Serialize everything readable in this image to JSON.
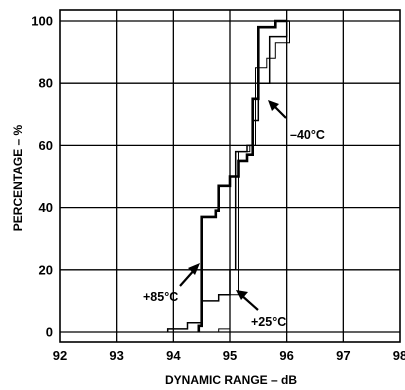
{
  "chart_data": {
    "type": "line",
    "title": "",
    "xlabel": "DYNAMIC RANGE – dB",
    "ylabel": "PERCENTAGE – %",
    "xlim": [
      92,
      98
    ],
    "ylim": [
      0,
      100
    ],
    "x_ticks": [
      "92",
      "93",
      "94",
      "95",
      "96",
      "97",
      "98"
    ],
    "y_ticks": [
      "0",
      "20",
      "40",
      "60",
      "80",
      "100"
    ],
    "grid": true,
    "annotations": [
      "–40°C",
      "+85°C",
      "+25°C"
    ],
    "series": [
      {
        "name": "–40°C",
        "style": "thick",
        "points": [
          [
            94.45,
            0
          ],
          [
            94.45,
            2
          ],
          [
            94.5,
            2
          ],
          [
            94.5,
            37
          ],
          [
            94.75,
            37
          ],
          [
            94.75,
            39
          ],
          [
            94.8,
            39
          ],
          [
            94.8,
            47
          ],
          [
            95.0,
            47
          ],
          [
            95.0,
            50
          ],
          [
            95.15,
            50
          ],
          [
            95.15,
            55
          ],
          [
            95.3,
            55
          ],
          [
            95.3,
            57
          ],
          [
            95.4,
            57
          ],
          [
            95.4,
            75
          ],
          [
            95.5,
            75
          ],
          [
            95.5,
            98
          ],
          [
            95.8,
            98
          ],
          [
            95.8,
            100
          ],
          [
            96.0,
            100
          ]
        ]
      },
      {
        "name": "+85°C",
        "style": "medium",
        "points": [
          [
            93.9,
            0
          ],
          [
            93.9,
            1
          ],
          [
            94.25,
            1
          ],
          [
            94.25,
            3
          ],
          [
            94.5,
            3
          ],
          [
            94.5,
            10
          ],
          [
            94.8,
            10
          ],
          [
            94.8,
            12
          ],
          [
            95.0,
            12
          ],
          [
            95.0,
            20
          ],
          [
            95.1,
            20
          ],
          [
            95.1,
            58
          ],
          [
            95.3,
            58
          ],
          [
            95.3,
            60
          ],
          [
            95.4,
            60
          ],
          [
            95.4,
            68
          ],
          [
            95.5,
            68
          ],
          [
            95.5,
            80
          ],
          [
            95.7,
            80
          ],
          [
            95.7,
            95
          ],
          [
            96.0,
            95
          ],
          [
            96.0,
            100
          ],
          [
            96.05,
            100
          ]
        ]
      },
      {
        "name": "+25°C",
        "style": "thin",
        "points": [
          [
            94.8,
            0
          ],
          [
            94.8,
            1
          ],
          [
            95.0,
            1
          ],
          [
            95.0,
            12
          ],
          [
            95.15,
            12
          ],
          [
            95.15,
            58
          ],
          [
            95.35,
            58
          ],
          [
            95.35,
            60
          ],
          [
            95.45,
            60
          ],
          [
            95.45,
            85
          ],
          [
            95.65,
            85
          ],
          [
            95.65,
            88
          ],
          [
            95.8,
            88
          ],
          [
            95.8,
            93
          ],
          [
            96.05,
            93
          ],
          [
            96.05,
            100
          ]
        ]
      }
    ]
  }
}
